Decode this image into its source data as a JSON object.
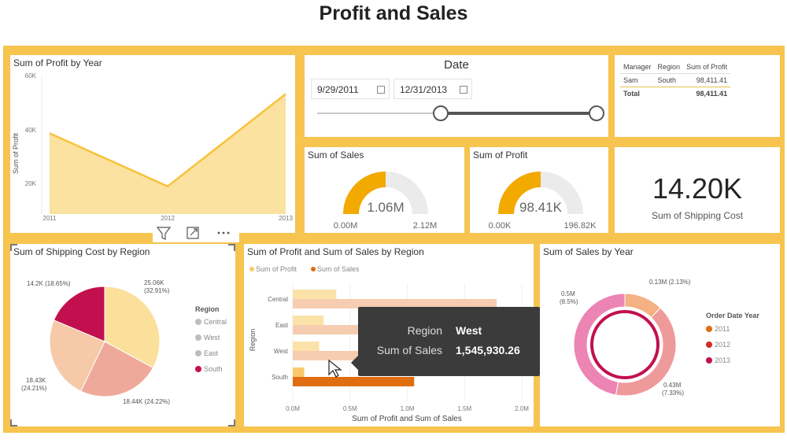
{
  "page": {
    "title": "Profit and Sales"
  },
  "colors": {
    "canvas": "#f6c44f",
    "accent": "#f2a900",
    "area": "#fbe2a0",
    "area_line": "#f7c33b"
  },
  "profit_by_year": {
    "title": "Sum of Profit by Year",
    "ylabel": "Sum of Profit",
    "y_ticks": [
      "60K",
      "40K",
      "20K"
    ],
    "chart_data": {
      "type": "area",
      "x": [
        "2011",
        "2012",
        "2013"
      ],
      "values": [
        35000,
        12000,
        52000
      ],
      "ylim": [
        0,
        60000
      ],
      "ylabel": "Sum of Profit",
      "title": "Sum of Profit by Year"
    }
  },
  "date_slicer": {
    "title": "Date",
    "start": "9/29/2011",
    "end": "12/31/2013"
  },
  "manager_table": {
    "headers": [
      "Manager",
      "Region",
      "Sum of Profit"
    ],
    "rows": [
      [
        "Sam",
        "South",
        "98,411.41"
      ]
    ],
    "total": [
      "Total",
      "",
      "98,411.41"
    ]
  },
  "sales_gauge": {
    "title": "Sum of Sales",
    "value": "1.06M",
    "min": "0.00M",
    "max": "2.12M",
    "fraction": 0.5
  },
  "profit_gauge": {
    "title": "Sum of Profit",
    "value": "98.41K",
    "min": "0.00K",
    "max": "196.82K",
    "fraction": 0.5
  },
  "shipping_card": {
    "value": "14.20K",
    "label": "Sum of Shipping Cost"
  },
  "shipping_by_region": {
    "title": "Sum of Shipping Cost by Region",
    "legend_title": "Region",
    "legend": [
      "Central",
      "West",
      "East",
      "South"
    ],
    "chart_data": {
      "type": "pie",
      "labels": [
        "Central",
        "West",
        "East",
        "South"
      ],
      "values": [
        25.06,
        18.44,
        18.43,
        14.2
      ],
      "data_labels": [
        [
          "25.06K",
          "(32.91%)"
        ],
        [
          "18.44K (24.22%)"
        ],
        [
          "18.43K",
          "(24.21%)"
        ],
        [
          "14.2K (18.65%)"
        ]
      ],
      "colors": [
        "#fbe09b",
        "#efa99a",
        "#f6c9a8",
        "#c2104e"
      ],
      "title": "Sum of Shipping Cost by Region"
    }
  },
  "profit_sales_by_region": {
    "title": "Sum of Profit and Sum of Sales by Region",
    "legend": [
      "Sum of Profit",
      "Sum of Sales"
    ],
    "ylabel": "Region",
    "xlabel": "Sum of Profit and Sum of Sales",
    "x_ticks": [
      "0.0M",
      "0.5M",
      "1.0M",
      "1.5M",
      "2.0M"
    ],
    "chart_data": {
      "type": "bar",
      "orientation": "horizontal",
      "categories": [
        "Central",
        "East",
        "West",
        "South"
      ],
      "series": [
        {
          "name": "Sum of Profit",
          "values": [
            0.38,
            0.27,
            0.23,
            0.1
          ]
        },
        {
          "name": "Sum of Sales",
          "values": [
            1.78,
            1.63,
            1.55,
            1.06
          ]
        }
      ],
      "xlim": [
        0,
        2.0
      ],
      "xlabel": "Sum of Profit and Sum of Sales",
      "ylabel": "Region",
      "title": "Sum of Profit and Sum of Sales by Region"
    }
  },
  "tooltip": {
    "key1": "Region",
    "val1": "West",
    "key2": "Sum of Sales",
    "val2": "1,545,930.26"
  },
  "sales_by_year": {
    "title": "Sum of Sales by Year",
    "legend_title": "Order Date Year",
    "legend": [
      "2011",
      "2012",
      "2013"
    ],
    "chart_data": {
      "type": "pie",
      "variant": "donut",
      "labels": [
        "2011",
        "2012",
        "2013"
      ],
      "values": [
        0.13,
        0.43,
        0.5
      ],
      "data_labels": [
        [
          "0.13M (2.13%)"
        ],
        [
          "0.43M",
          "(7.33%)"
        ],
        [
          "0.5M",
          "(8.5%)"
        ]
      ],
      "colors": [
        "#f4b183",
        "#ef9a9a",
        "#ec84b4"
      ],
      "title": "Sum of Sales by Year"
    }
  }
}
